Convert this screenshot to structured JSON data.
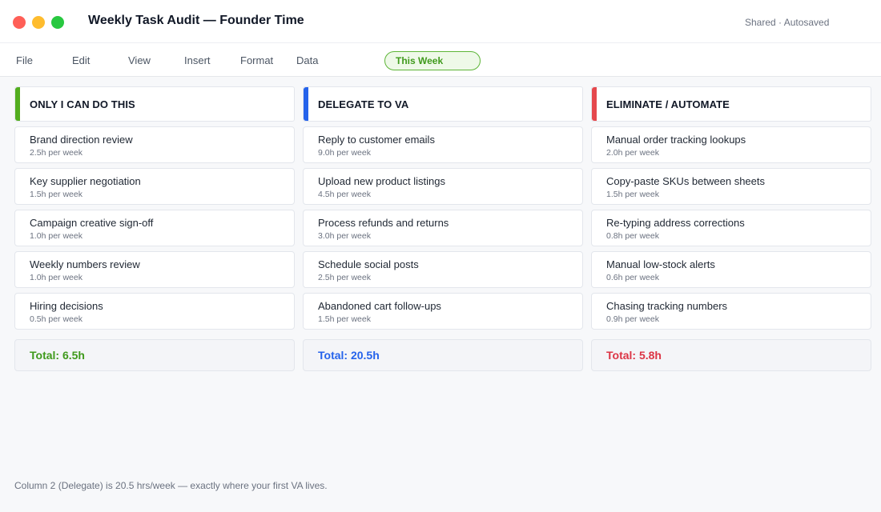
{
  "window": {
    "title": "Weekly Task Audit — Founder Time",
    "status": "Shared · Autosaved"
  },
  "menu": {
    "items": [
      "File",
      "Edit",
      "View",
      "Insert",
      "Format",
      "Data"
    ],
    "week_filter": "This Week"
  },
  "columns": [
    {
      "header": "ONLY I CAN DO THIS",
      "accent": "#52ad1e",
      "total": "Total: 6.5h",
      "total_color": "#3f9a1c",
      "tasks": [
        {
          "name": "Brand direction review",
          "hours": "2.5h per week"
        },
        {
          "name": "Key supplier negotiation",
          "hours": "1.5h per week"
        },
        {
          "name": "Campaign creative sign-off",
          "hours": "1.0h per week"
        },
        {
          "name": "Weekly numbers review",
          "hours": "1.0h per week"
        },
        {
          "name": "Hiring decisions",
          "hours": "0.5h per week"
        }
      ]
    },
    {
      "header": "DELEGATE TO VA",
      "accent": "#2563eb",
      "total": "Total: 20.5h",
      "total_color": "#2563eb",
      "tasks": [
        {
          "name": "Reply to customer emails",
          "hours": "9.0h per week"
        },
        {
          "name": "Upload new product listings",
          "hours": "4.5h per week"
        },
        {
          "name": "Process refunds and returns",
          "hours": "3.0h per week"
        },
        {
          "name": "Schedule social posts",
          "hours": "2.5h per week"
        },
        {
          "name": "Abandoned cart follow-ups",
          "hours": "1.5h per week"
        }
      ]
    },
    {
      "header": "ELIMINATE / AUTOMATE",
      "accent": "#e5484d",
      "total": "Total: 5.8h",
      "total_color": "#dc3545",
      "tasks": [
        {
          "name": "Manual order tracking lookups",
          "hours": "2.0h per week"
        },
        {
          "name": "Copy-paste SKUs between sheets",
          "hours": "1.5h per week"
        },
        {
          "name": "Re-typing address corrections",
          "hours": "0.8h per week"
        },
        {
          "name": "Manual low-stock alerts",
          "hours": "0.6h per week"
        },
        {
          "name": "Chasing tracking numbers",
          "hours": "0.9h per week"
        }
      ]
    }
  ],
  "footer": {
    "note": "Column 2 (Delegate) is 20.5 hrs/week — exactly where your first VA lives."
  }
}
